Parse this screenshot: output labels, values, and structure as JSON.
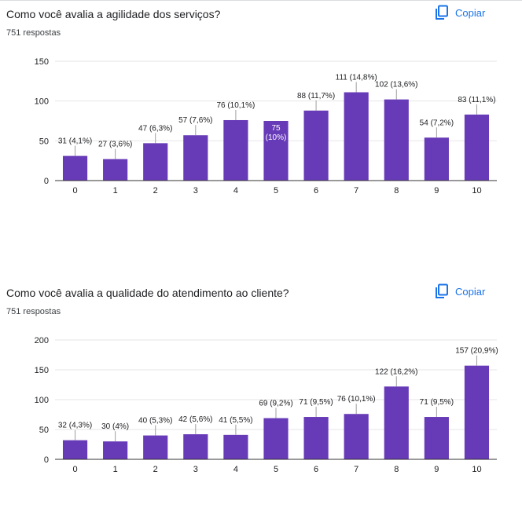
{
  "colors": {
    "bar": "#673ab7",
    "accent": "#1a73e8",
    "grid": "#e6e6e6",
    "axis": "#333333",
    "text": "#202124"
  },
  "questions": [
    {
      "title": "Como você avalia a agilidade dos serviços?",
      "responses": "751 respostas",
      "copy_label": "Copiar",
      "copy_icon": "copy-icon"
    },
    {
      "title": "Como você avalia a qualidade do atendimento ao cliente?",
      "responses": "751 respostas",
      "copy_label": "Copiar",
      "copy_icon": "copy-icon"
    }
  ],
  "chart_data": [
    {
      "type": "bar",
      "categories": [
        "0",
        "1",
        "2",
        "3",
        "4",
        "5",
        "6",
        "7",
        "8",
        "9",
        "10"
      ],
      "values": [
        31,
        27,
        47,
        57,
        76,
        75,
        88,
        111,
        102,
        54,
        83
      ],
      "labels": [
        "31 (4,1%)",
        "27 (3,6%)",
        "47 (6,3%)",
        "57 (7,6%)",
        "76 (10,1%)",
        "75 (10%)",
        "88 (11,7%)",
        "111 (14,8%)",
        "102 (13,6%)",
        "54 (7,2%)",
        "83 (11,1%)"
      ],
      "yticks": [
        0,
        50,
        100,
        150
      ],
      "ylim": [
        0,
        150
      ],
      "grid": true,
      "legend": "none"
    },
    {
      "type": "bar",
      "categories": [
        "0",
        "1",
        "2",
        "3",
        "4",
        "5",
        "6",
        "7",
        "8",
        "9",
        "10"
      ],
      "values": [
        32,
        30,
        40,
        42,
        41,
        69,
        71,
        76,
        122,
        71,
        157
      ],
      "labels": [
        "32 (4,3%)",
        "30 (4%)",
        "40 (5,3%)",
        "42 (5,6%)",
        "41 (5,5%)",
        "69 (9,2%)",
        "71 (9,5%)",
        "76 (10,1%)",
        "122 (16,2%)",
        "71 (9,5%)",
        "157 (20,9%)"
      ],
      "yticks": [
        0,
        50,
        100,
        150,
        200
      ],
      "ylim": [
        0,
        200
      ],
      "grid": true,
      "legend": "none"
    }
  ]
}
